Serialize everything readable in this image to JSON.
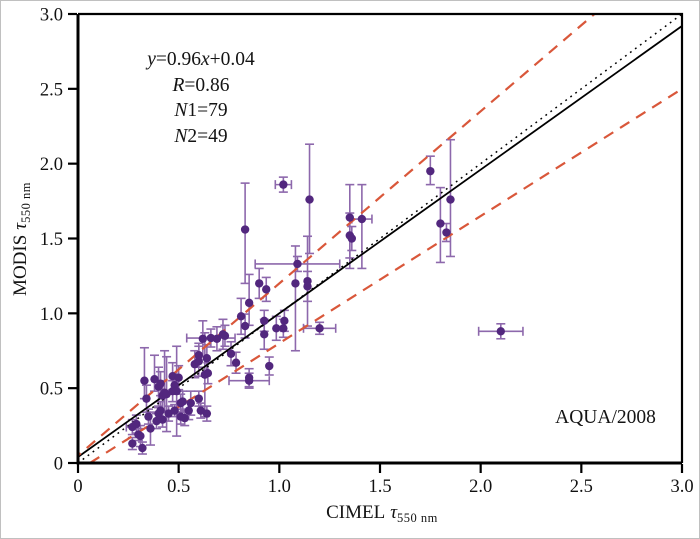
{
  "chart_data": {
    "type": "scatter",
    "corner_label": "AQUA/2008",
    "xlabel_prefix": "CIMEL",
    "ylabel_prefix": "MODIS",
    "tau": "τ",
    "axis_subscript": "550 nm",
    "xlim": [
      0,
      3
    ],
    "ylim": [
      0,
      3
    ],
    "xticks": [
      0,
      0.5,
      1,
      1.5,
      2,
      2.5,
      3
    ],
    "yticks": [
      0,
      0.5,
      1,
      1.5,
      2,
      2.5,
      3
    ],
    "xtick_labels": [
      "0",
      "0.5",
      "1.0",
      "1.5",
      "2.0",
      "2.5",
      "3.0"
    ],
    "ytick_labels": [
      "0",
      "0.5",
      "1.0",
      "1.5",
      "2.0",
      "2.5",
      "3.0"
    ],
    "grid": false,
    "annotation": {
      "lines": [
        "y=0.96x+0.04",
        "R=0.86",
        "N1=79",
        "N2=49"
      ]
    },
    "colors": {
      "marker": "#52277e",
      "errorbar": "#8d68ac",
      "envelope": "#d9573a",
      "line": "#000000"
    },
    "lines": [
      {
        "name": "identity-line",
        "style": "dotted",
        "color": "#000000",
        "slope": 1,
        "intercept": 0
      },
      {
        "name": "regression-line",
        "style": "solid",
        "color": "#000000",
        "slope": 0.96,
        "intercept": 0.04
      },
      {
        "name": "envelope-upper",
        "style": "dashed",
        "color": "#d9573a",
        "slope": 1.15,
        "intercept": 0.05
      },
      {
        "name": "envelope-lower",
        "style": "dashed",
        "color": "#d9573a",
        "slope": 0.85,
        "intercept": -0.05
      }
    ],
    "points": [
      {
        "x": 0.27,
        "y": 0.13,
        "ey": 0.04
      },
      {
        "x": 0.27,
        "y": 0.24,
        "ey": 0.05,
        "ex": 0.03
      },
      {
        "x": 0.29,
        "y": 0.26,
        "ey": 0.06
      },
      {
        "x": 0.3,
        "y": 0.19,
        "ey": 0.04
      },
      {
        "x": 0.31,
        "y": 0.18,
        "ey": 0.07
      },
      {
        "x": 0.32,
        "y": 0.1,
        "ey": 0.04
      },
      {
        "x": 0.33,
        "y": 0.55,
        "eyl": 0.12,
        "eyu": 0.22
      },
      {
        "x": 0.34,
        "y": 0.43,
        "ey": 0.09
      },
      {
        "x": 0.35,
        "y": 0.31,
        "ey": 0.05
      },
      {
        "x": 0.36,
        "y": 0.23,
        "ey": 0.11
      },
      {
        "x": 0.38,
        "y": 0.56,
        "eyl": 0.08,
        "eyu": 0.16
      },
      {
        "x": 0.39,
        "y": 0.28,
        "ey": 0.05
      },
      {
        "x": 0.4,
        "y": 0.33,
        "ey": 0.04
      },
      {
        "x": 0.4,
        "y": 0.51,
        "ey": 0.13
      },
      {
        "x": 0.41,
        "y": 0.35,
        "ey": 0.06
      },
      {
        "x": 0.41,
        "y": 0.53,
        "ey": 0.08
      },
      {
        "x": 0.42,
        "y": 0.29,
        "ey": 0.05
      },
      {
        "x": 0.42,
        "y": 0.45,
        "ey": 0.1
      },
      {
        "x": 0.43,
        "y": 0.47,
        "eyl": 0.12,
        "eyu": 0.28
      },
      {
        "x": 0.44,
        "y": 0.46,
        "ey": 0.25
      },
      {
        "x": 0.45,
        "y": 0.33,
        "ey": 0.05
      },
      {
        "x": 0.47,
        "y": 0.48,
        "ey": 0.07
      },
      {
        "x": 0.47,
        "y": 0.58,
        "ey": 0.09
      },
      {
        "x": 0.48,
        "y": 0.35,
        "ey": 0.04
      },
      {
        "x": 0.48,
        "y": 0.52,
        "ey": 0.06
      },
      {
        "x": 0.49,
        "y": 0.48,
        "ey": 0.3
      },
      {
        "x": 0.5,
        "y": 0.57,
        "ey": 0.08
      },
      {
        "x": 0.51,
        "y": 0.31,
        "ey": 0.05
      },
      {
        "x": 0.51,
        "y": 0.4,
        "ey": 0.06
      },
      {
        "x": 0.52,
        "y": 0.41,
        "ey": 0.07
      },
      {
        "x": 0.53,
        "y": 0.3,
        "ey": 0.05
      },
      {
        "x": 0.55,
        "y": 0.35,
        "ey": 0.06
      },
      {
        "x": 0.56,
        "y": 0.4,
        "ey": 0.08
      },
      {
        "x": 0.58,
        "y": 0.66,
        "ey": 0.09
      },
      {
        "x": 0.6,
        "y": 0.43,
        "ey": 0.05
      },
      {
        "x": 0.6,
        "y": 0.68,
        "ey": 0.1
      },
      {
        "x": 0.6,
        "y": 0.72,
        "ey": 0.08
      },
      {
        "x": 0.61,
        "y": 0.35,
        "ey": 0.05
      },
      {
        "x": 0.62,
        "y": 0.83,
        "ey": 0.12
      },
      {
        "x": 0.63,
        "y": 0.59,
        "ey": 0.28
      },
      {
        "x": 0.64,
        "y": 0.33,
        "ey": 0.05
      },
      {
        "x": 0.64,
        "y": 0.7,
        "ey": 0.09
      },
      {
        "x": 0.645,
        "y": 0.6,
        "ey": 0.07
      },
      {
        "x": 0.66,
        "y": 0.835,
        "ey": 0.06,
        "ex": 0.12
      },
      {
        "x": 0.69,
        "y": 0.83,
        "ey": 0.08
      },
      {
        "x": 0.72,
        "y": 0.86,
        "ey": 0.1
      },
      {
        "x": 0.73,
        "y": 0.85,
        "ey": 0.07
      },
      {
        "x": 0.76,
        "y": 0.73,
        "ey": 0.08
      },
      {
        "x": 0.785,
        "y": 0.67,
        "ey": 0.07
      },
      {
        "x": 0.81,
        "y": 0.98,
        "ey": 0.12
      },
      {
        "x": 0.83,
        "y": 0.915,
        "ey": 0.08
      },
      {
        "x": 0.85,
        "y": 0.55,
        "ey": 0.05,
        "ex": 0.1
      },
      {
        "x": 0.85,
        "y": 0.57,
        "ey": 0.06
      },
      {
        "x": 0.85,
        "y": 1.07,
        "eyl": 0.15,
        "eyu": 0.19
      },
      {
        "x": 0.83,
        "y": 1.56,
        "eyl": 0.36,
        "eyu": 0.31
      },
      {
        "x": 0.9,
        "y": 1.2,
        "ey": 0.1
      },
      {
        "x": 0.925,
        "y": 0.86,
        "ey": 0.1
      },
      {
        "x": 0.925,
        "y": 0.95,
        "ey": 0.07
      },
      {
        "x": 0.935,
        "y": 1.16,
        "ey": 0.08
      },
      {
        "x": 0.95,
        "y": 0.648,
        "ey": 0.06
      },
      {
        "x": 0.985,
        "y": 0.9,
        "ey": 0.08
      },
      {
        "x": 1.02,
        "y": 0.9,
        "ey": 0.06
      },
      {
        "x": 1.025,
        "y": 0.95,
        "ey": 0.07
      },
      {
        "x": 1.02,
        "y": 1.86,
        "ey": 0.05,
        "ex": 0.04
      },
      {
        "x": 1.08,
        "y": 1.2,
        "eyl": 0.45,
        "eyu": 0.25
      },
      {
        "x": 1.09,
        "y": 1.33,
        "ey": 0.05,
        "ex": 0.21
      },
      {
        "x": 1.14,
        "y": 1.215,
        "ey": 0.3
      },
      {
        "x": 1.14,
        "y": 1.18,
        "ey": 0.1
      },
      {
        "x": 1.15,
        "y": 1.76,
        "eyl": 0.36,
        "eyu": 0.37
      },
      {
        "x": 1.2,
        "y": 0.9,
        "ey": 0.04,
        "ex": 0.08
      },
      {
        "x": 1.35,
        "y": 1.52,
        "ey": 0.15
      },
      {
        "x": 1.35,
        "y": 1.64,
        "eyl": 0.34,
        "eyu": 0.22
      },
      {
        "x": 1.36,
        "y": 1.5,
        "ey": 0.08
      },
      {
        "x": 1.41,
        "y": 1.63,
        "eyl": 0.33,
        "eyu": 0.23,
        "ex": 0.05
      },
      {
        "x": 1.75,
        "y": 1.95,
        "eyl": 0.09,
        "eyu": 0.1
      },
      {
        "x": 1.8,
        "y": 1.6,
        "eyl": 0.26,
        "eyu": 0.24
      },
      {
        "x": 1.83,
        "y": 1.54,
        "ey": 0.06
      },
      {
        "x": 1.85,
        "y": 1.76,
        "eyl": 0.38,
        "eyu": 0.4
      },
      {
        "x": 2.1,
        "y": 0.88,
        "ey": 0.05,
        "ex": 0.11
      }
    ]
  }
}
